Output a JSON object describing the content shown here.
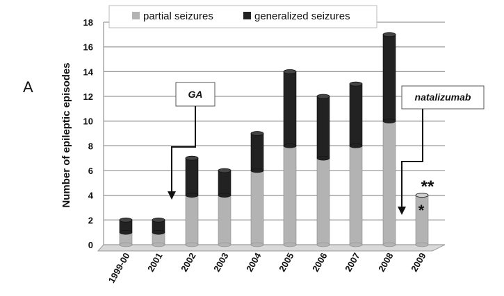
{
  "panel_label": "A",
  "chart_data": {
    "type": "bar",
    "stacked": true,
    "categories": [
      "1999-00",
      "2001",
      "2002",
      "2003",
      "2004",
      "2005",
      "2006",
      "2007",
      "2008",
      "2009"
    ],
    "series": [
      {
        "name": "partial seizures",
        "color": "#b3b3b3",
        "values": [
          1,
          1,
          4,
          4,
          6,
          8,
          7,
          8,
          10,
          4
        ]
      },
      {
        "name": "generalized seizures",
        "color": "#222222",
        "values": [
          1,
          1,
          3,
          2,
          3,
          6,
          5,
          5,
          7,
          0
        ]
      }
    ],
    "ylabel": "Number of epileptic episodes",
    "ylim": [
      0,
      18
    ],
    "yticks": [
      0,
      2,
      4,
      6,
      8,
      10,
      12,
      14,
      16,
      18
    ],
    "grid": true,
    "legend_position": "top",
    "annotations": [
      {
        "text": "GA",
        "points_to": "2002"
      },
      {
        "text": "natalizumab",
        "points_to": "2009"
      }
    ],
    "markers": [
      {
        "text": "**",
        "category": "2009"
      },
      {
        "text": "*",
        "category": "2009"
      }
    ]
  }
}
